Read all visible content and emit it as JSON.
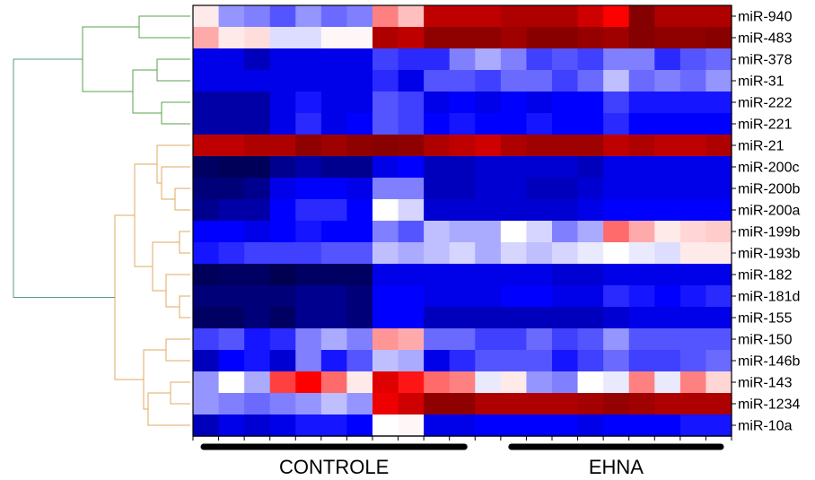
{
  "chart_data": {
    "type": "heatmap",
    "title": "",
    "xlabel": "",
    "ylabel": "",
    "rows": [
      "miR-940",
      "miR-483",
      "miR-378",
      "miR-31",
      "miR-222",
      "miR-221",
      "miR-21",
      "miR-200c",
      "miR-200b",
      "miR-200a",
      "miR-199b",
      "miR-193b",
      "miR-182",
      "miR-181d",
      "miR-155",
      "miR-150",
      "miR-146b",
      "miR-143",
      "miR-1234",
      "miR-10a"
    ],
    "groups": [
      {
        "label": "CONTROLE",
        "first_column": 0,
        "last_column": 10
      },
      {
        "label": "EHNA",
        "first_column": 12,
        "last_column": 20
      }
    ],
    "color_scale": {
      "low": "#00004c",
      "mid_low": "#0000ff",
      "mid": "#ffffff",
      "mid_high": "#ff0000",
      "high": "#7f0000",
      "range": [
        -1,
        1
      ]
    },
    "dendrogram_colors": {
      "top_cluster": "#5aa04e",
      "bottom_cluster": "#e0a860",
      "root": "#5a9a8e"
    },
    "values": [
      [
        0.05,
        -0.25,
        -0.3,
        -0.4,
        -0.25,
        -0.35,
        -0.3,
        0.3,
        0.15,
        0.8,
        0.8,
        0.8,
        0.85,
        0.85,
        0.85,
        0.75,
        0.6,
        0.98,
        0.85,
        0.85,
        0.85
      ],
      [
        0.2,
        0.05,
        0.08,
        -0.08,
        -0.08,
        0.02,
        0.02,
        0.85,
        0.8,
        0.95,
        0.95,
        0.95,
        0.9,
        0.97,
        0.97,
        0.93,
        0.9,
        0.98,
        0.95,
        0.95,
        0.97
      ],
      [
        -0.65,
        -0.65,
        -0.75,
        -0.65,
        -0.65,
        -0.65,
        -0.65,
        -0.45,
        -0.5,
        -0.5,
        -0.3,
        -0.2,
        -0.3,
        -0.45,
        -0.4,
        -0.45,
        -0.3,
        -0.3,
        -0.5,
        -0.4,
        -0.35
      ],
      [
        -0.65,
        -0.65,
        -0.65,
        -0.65,
        -0.65,
        -0.65,
        -0.65,
        -0.5,
        -0.65,
        -0.4,
        -0.4,
        -0.45,
        -0.35,
        -0.35,
        -0.45,
        -0.35,
        -0.15,
        -0.35,
        -0.3,
        -0.35,
        -0.25
      ],
      [
        -0.8,
        -0.8,
        -0.8,
        -0.65,
        -0.55,
        -0.65,
        -0.65,
        -0.4,
        -0.45,
        -0.65,
        -0.6,
        -0.65,
        -0.6,
        -0.65,
        -0.6,
        -0.6,
        -0.45,
        -0.55,
        -0.55,
        -0.55,
        -0.55
      ],
      [
        -0.8,
        -0.8,
        -0.8,
        -0.65,
        -0.5,
        -0.65,
        -0.6,
        -0.4,
        -0.45,
        -0.6,
        -0.55,
        -0.6,
        -0.6,
        -0.55,
        -0.6,
        -0.6,
        -0.5,
        -0.6,
        -0.6,
        -0.6,
        -0.6
      ],
      [
        0.8,
        0.8,
        0.85,
        0.85,
        0.95,
        0.9,
        0.95,
        0.97,
        0.95,
        0.85,
        0.8,
        0.75,
        0.85,
        0.9,
        0.9,
        0.9,
        0.8,
        0.85,
        0.8,
        0.8,
        0.85
      ],
      [
        -0.95,
        -0.97,
        -0.97,
        -0.85,
        -0.8,
        -0.85,
        -0.85,
        -0.65,
        -0.6,
        -0.75,
        -0.75,
        -0.7,
        -0.7,
        -0.7,
        -0.7,
        -0.75,
        -0.65,
        -0.65,
        -0.65,
        -0.65,
        -0.65
      ],
      [
        -0.9,
        -0.9,
        -0.85,
        -0.65,
        -0.6,
        -0.6,
        -0.65,
        -0.3,
        -0.3,
        -0.75,
        -0.75,
        -0.7,
        -0.7,
        -0.75,
        -0.75,
        -0.7,
        -0.65,
        -0.65,
        -0.65,
        -0.65,
        -0.65
      ],
      [
        -0.85,
        -0.8,
        -0.8,
        -0.6,
        -0.5,
        -0.5,
        -0.6,
        0.0,
        -0.1,
        -0.7,
        -0.7,
        -0.7,
        -0.7,
        -0.7,
        -0.7,
        -0.65,
        -0.6,
        -0.6,
        -0.6,
        -0.6,
        -0.6
      ],
      [
        -0.6,
        -0.6,
        -0.65,
        -0.6,
        -0.55,
        -0.6,
        -0.6,
        -0.3,
        -0.4,
        -0.15,
        -0.2,
        -0.2,
        0.0,
        -0.1,
        -0.3,
        -0.2,
        0.35,
        0.2,
        0.05,
        0.1,
        0.12
      ],
      [
        -0.55,
        -0.5,
        -0.45,
        -0.45,
        -0.45,
        -0.4,
        -0.4,
        -0.15,
        -0.2,
        -0.15,
        -0.1,
        -0.2,
        -0.1,
        -0.15,
        -0.1,
        -0.05,
        0.0,
        -0.05,
        -0.08,
        0.05,
        0.05
      ],
      [
        -0.97,
        -0.95,
        -0.95,
        -0.99,
        -0.95,
        -0.95,
        -0.95,
        -0.65,
        -0.65,
        -0.65,
        -0.65,
        -0.65,
        -0.65,
        -0.65,
        -0.7,
        -0.7,
        -0.65,
        -0.65,
        -0.65,
        -0.65,
        -0.65
      ],
      [
        -0.9,
        -0.9,
        -0.9,
        -0.9,
        -0.85,
        -0.85,
        -0.9,
        -0.6,
        -0.6,
        -0.65,
        -0.65,
        -0.65,
        -0.6,
        -0.6,
        -0.65,
        -0.65,
        -0.5,
        -0.55,
        -0.6,
        -0.55,
        -0.5
      ],
      [
        -0.95,
        -0.95,
        -0.9,
        -0.95,
        -0.85,
        -0.85,
        -0.9,
        -0.6,
        -0.6,
        -0.75,
        -0.75,
        -0.75,
        -0.75,
        -0.75,
        -0.75,
        -0.75,
        -0.7,
        -0.65,
        -0.65,
        -0.65,
        -0.65
      ],
      [
        -0.45,
        -0.4,
        -0.55,
        -0.5,
        -0.3,
        -0.2,
        -0.3,
        0.25,
        0.2,
        -0.35,
        -0.35,
        -0.45,
        -0.45,
        -0.35,
        -0.45,
        -0.4,
        -0.25,
        -0.4,
        -0.4,
        -0.4,
        -0.4
      ],
      [
        -0.75,
        -0.6,
        -0.55,
        -0.7,
        -0.3,
        -0.55,
        -0.4,
        -0.15,
        -0.2,
        -0.65,
        -0.5,
        -0.4,
        -0.4,
        -0.4,
        -0.55,
        -0.45,
        -0.35,
        -0.45,
        -0.45,
        -0.4,
        -0.35
      ],
      [
        -0.25,
        0.0,
        -0.2,
        0.45,
        0.6,
        0.35,
        0.05,
        0.7,
        0.55,
        0.35,
        0.3,
        -0.05,
        0.05,
        -0.25,
        -0.3,
        0.0,
        -0.05,
        0.3,
        -0.05,
        0.3,
        0.1
      ],
      [
        -0.25,
        -0.3,
        -0.35,
        -0.3,
        -0.25,
        -0.15,
        -0.25,
        0.65,
        0.75,
        0.95,
        0.95,
        0.85,
        0.85,
        0.85,
        0.85,
        0.88,
        0.93,
        0.9,
        0.85,
        0.85,
        0.85
      ],
      [
        -0.75,
        -0.65,
        -0.7,
        -0.65,
        -0.55,
        -0.55,
        -0.6,
        0.0,
        0.02,
        -0.65,
        -0.65,
        -0.6,
        -0.6,
        -0.6,
        -0.6,
        -0.65,
        -0.6,
        -0.6,
        -0.6,
        -0.55,
        -0.55
      ]
    ]
  }
}
